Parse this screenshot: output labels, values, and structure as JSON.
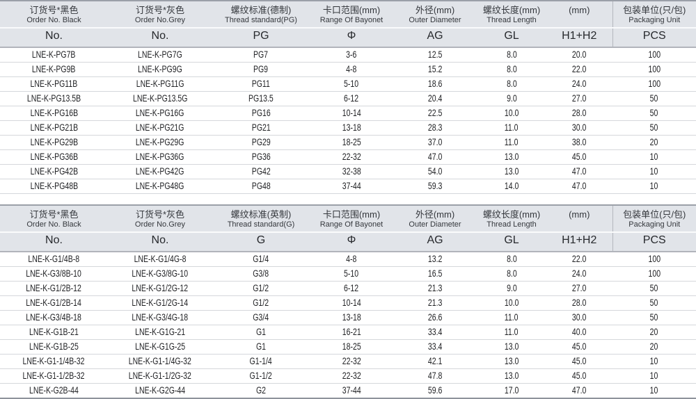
{
  "colors": {
    "header_bg": "#e1e4e9",
    "table_top_border": "#9ba0a8",
    "table_bottom_border": "#8e939b",
    "row_divider": "#d5d7db",
    "header_divider_white": "#fafbfc",
    "header_bottom_divider": "#b1b4bb",
    "text_dark": "#1e1f22"
  },
  "column_keys": [
    "order-no-black",
    "order-no-grey",
    "thread-standard",
    "bayonet-range",
    "outer-diameter",
    "thread-length",
    "h1-h2",
    "packaging-unit"
  ],
  "tables": [
    {
      "name": "pg-thread-table",
      "columns": [
        {
          "cn": "订货号*黑色",
          "en": "Order No. Black",
          "code": "No."
        },
        {
          "cn": "订货号*灰色",
          "en": "Order No.Grey",
          "code": "No."
        },
        {
          "cn": "螺纹标准(德制)",
          "en": "Thread standard(PG)",
          "code": "PG"
        },
        {
          "cn": "卡口范围(mm)",
          "en": "Range Of Bayonet",
          "code": "Φ"
        },
        {
          "cn": "外径(mm)",
          "en": "Outer Diameter",
          "code": "AG"
        },
        {
          "cn": "螺纹长度(mm)",
          "en": "Thread Length",
          "code": "GL"
        },
        {
          "cn": "(mm)",
          "en": "",
          "code": "H1+H2"
        },
        {
          "cn": "包装单位(只/包)",
          "en": "Packaging Unit",
          "code": "PCS"
        }
      ],
      "rows": [
        [
          "LNE-K-PG7B",
          "LNE-K-PG7G",
          "PG7",
          "3-6",
          "12.5",
          "8.0",
          "20.0",
          "100"
        ],
        [
          "LNE-K-PG9B",
          "LNE-K-PG9G",
          "PG9",
          "4-8",
          "15.2",
          "8.0",
          "22.0",
          "100"
        ],
        [
          "LNE-K-PG11B",
          "LNE-K-PG11G",
          "PG11",
          "5-10",
          "18.6",
          "8.0",
          "24.0",
          "100"
        ],
        [
          "LNE-K-PG13.5B",
          "LNE-K-PG13.5G",
          "PG13.5",
          "6-12",
          "20.4",
          "9.0",
          "27.0",
          "50"
        ],
        [
          "LNE-K-PG16B",
          "LNE-K-PG16G",
          "PG16",
          "10-14",
          "22.5",
          "10.0",
          "28.0",
          "50"
        ],
        [
          "LNE-K-PG21B",
          "LNE-K-PG21G",
          "PG21",
          "13-18",
          "28.3",
          "11.0",
          "30.0",
          "50"
        ],
        [
          "LNE-K-PG29B",
          "LNE-K-PG29G",
          "PG29",
          "18-25",
          "37.0",
          "11.0",
          "38.0",
          "20"
        ],
        [
          "LNE-K-PG36B",
          "LNE-K-PG36G",
          "PG36",
          "22-32",
          "47.0",
          "13.0",
          "45.0",
          "10"
        ],
        [
          "LNE-K-PG42B",
          "LNE-K-PG42G",
          "PG42",
          "32-38",
          "54.0",
          "13.0",
          "47.0",
          "10"
        ],
        [
          "LNE-K-PG48B",
          "LNE-K-PG48G",
          "PG48",
          "37-44",
          "59.3",
          "14.0",
          "47.0",
          "10"
        ]
      ]
    },
    {
      "name": "g-thread-table",
      "columns": [
        {
          "cn": "订货号*黑色",
          "en": "Order No. Black",
          "code": "No."
        },
        {
          "cn": "订货号*灰色",
          "en": "Order No.Grey",
          "code": "No."
        },
        {
          "cn": "螺纹标准(英制)",
          "en": "Thread standard(G)",
          "code": "G"
        },
        {
          "cn": "卡口范围(mm)",
          "en": "Range Of Bayonet",
          "code": "Φ"
        },
        {
          "cn": "外径(mm)",
          "en": "Outer Diameter",
          "code": "AG"
        },
        {
          "cn": "螺纹长度(mm)",
          "en": "Thread Length",
          "code": "GL"
        },
        {
          "cn": "(mm)",
          "en": "",
          "code": "H1+H2"
        },
        {
          "cn": "包装单位(只/包)",
          "en": "Packaging Unit",
          "code": "PCS"
        }
      ],
      "rows": [
        [
          "LNE-K-G1/4B-8",
          "LNE-K-G1/4G-8",
          "G1/4",
          "4-8",
          "13.2",
          "8.0",
          "22.0",
          "100"
        ],
        [
          "LNE-K-G3/8B-10",
          "LNE-K-G3/8G-10",
          "G3/8",
          "5-10",
          "16.5",
          "8.0",
          "24.0",
          "100"
        ],
        [
          "LNE-K-G1/2B-12",
          "LNE-K-G1/2G-12",
          "G1/2",
          "6-12",
          "21.3",
          "9.0",
          "27.0",
          "50"
        ],
        [
          "LNE-K-G1/2B-14",
          "LNE-K-G1/2G-14",
          "G1/2",
          "10-14",
          "21.3",
          "10.0",
          "28.0",
          "50"
        ],
        [
          "LNE-K-G3/4B-18",
          "LNE-K-G3/4G-18",
          "G3/4",
          "13-18",
          "26.6",
          "11.0",
          "30.0",
          "50"
        ],
        [
          "LNE-K-G1B-21",
          "LNE-K-G1G-21",
          "G1",
          "16-21",
          "33.4",
          "11.0",
          "40.0",
          "20"
        ],
        [
          "LNE-K-G1B-25",
          "LNE-K-G1G-25",
          "G1",
          "18-25",
          "33.4",
          "13.0",
          "45.0",
          "20"
        ],
        [
          "LNE-K-G1-1/4B-32",
          "LNE-K-G1-1/4G-32",
          "G1-1/4",
          "22-32",
          "42.1",
          "13.0",
          "45.0",
          "10"
        ],
        [
          "LNE-K-G1-1/2B-32",
          "LNE-K-G1-1/2G-32",
          "G1-1/2",
          "22-32",
          "47.8",
          "13.0",
          "45.0",
          "10"
        ],
        [
          "LNE-K-G2B-44",
          "LNE-K-G2G-44",
          "G2",
          "37-44",
          "59.6",
          "17.0",
          "47.0",
          "10"
        ]
      ]
    }
  ]
}
